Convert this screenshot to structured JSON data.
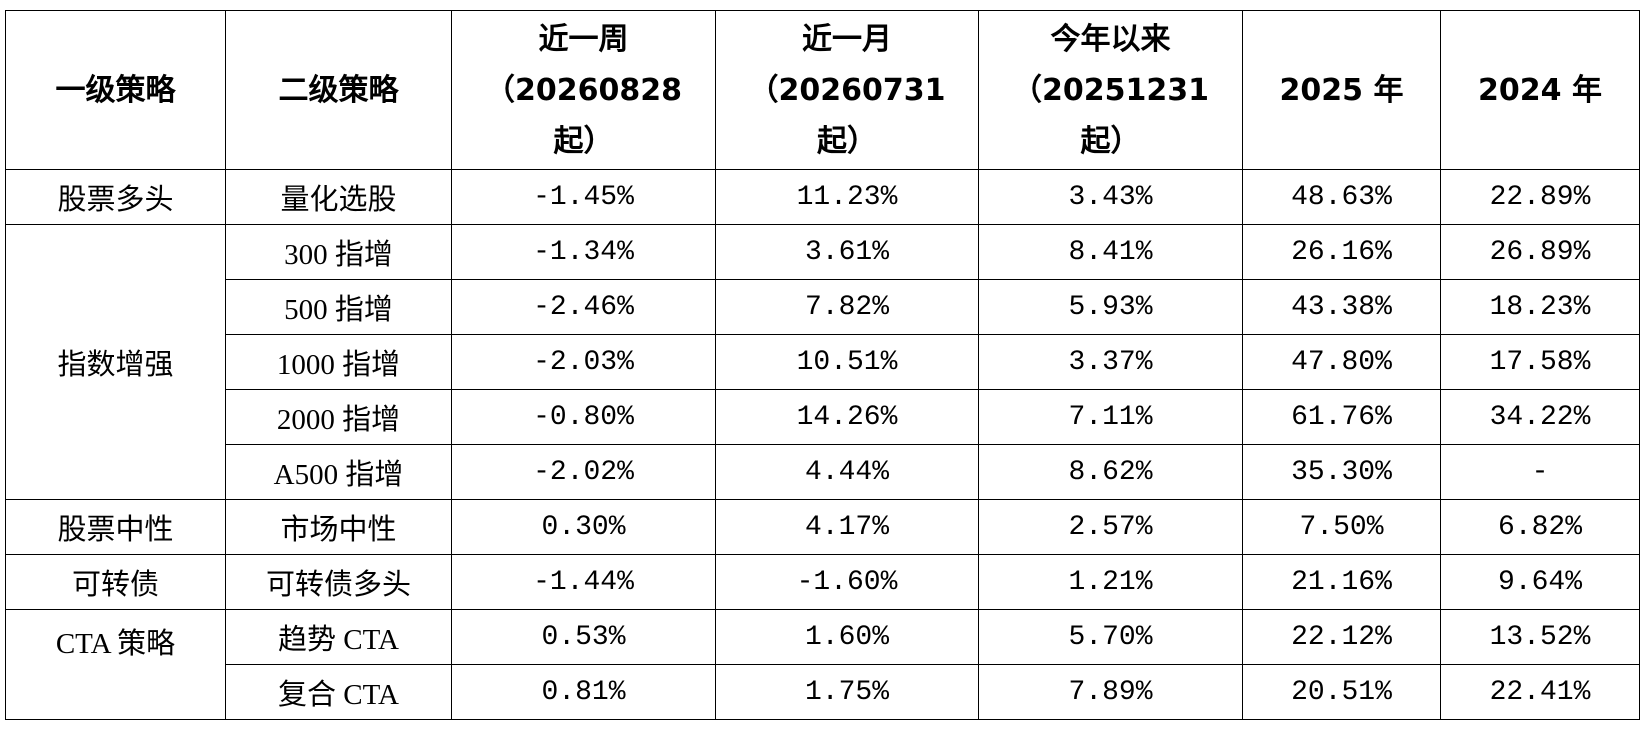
{
  "table": {
    "header": [
      [
        "一级策略"
      ],
      [
        "二级策略"
      ],
      [
        "近一周",
        "（20260828",
        "起）"
      ],
      [
        "近一月",
        "（20260731",
        "起）"
      ],
      [
        "今年以来",
        "（20251231",
        "起）"
      ],
      [
        "2025 年"
      ],
      [
        "2024 年"
      ]
    ],
    "groups": [
      {
        "name": "股票多头",
        "rows": [
          [
            "量化选股",
            "-1.45%",
            "11.23%",
            "3.43%",
            "48.63%",
            "22.89%"
          ]
        ]
      },
      {
        "name": "指数增强",
        "rows": [
          [
            "300 指增",
            "-1.34%",
            "3.61%",
            "8.41%",
            "26.16%",
            "26.89%"
          ],
          [
            "500 指增",
            "-2.46%",
            "7.82%",
            "5.93%",
            "43.38%",
            "18.23%"
          ],
          [
            "1000 指增",
            "-2.03%",
            "10.51%",
            "3.37%",
            "47.80%",
            "17.58%"
          ],
          [
            "2000 指增",
            "-0.80%",
            "14.26%",
            "7.11%",
            "61.76%",
            "34.22%"
          ],
          [
            "A500 指增",
            "-2.02%",
            "4.44%",
            "8.62%",
            "35.30%",
            "-"
          ]
        ]
      },
      {
        "name": "股票中性",
        "rows": [
          [
            "市场中性",
            "0.30%",
            "4.17%",
            "2.57%",
            "7.50%",
            "6.82%"
          ]
        ]
      },
      {
        "name": "可转债",
        "rows": [
          [
            "可转债多头",
            "-1.44%",
            "-1.60%",
            "1.21%",
            "21.16%",
            "9.64%"
          ]
        ]
      },
      {
        "name": "CTA 策略",
        "rows": [
          [
            "趋势 CTA",
            "0.53%",
            "1.60%",
            "5.70%",
            "22.12%",
            "13.52%"
          ],
          [
            "复合 CTA",
            "0.81%",
            "1.75%",
            "7.89%",
            "20.51%",
            "22.41%"
          ]
        ]
      }
    ]
  }
}
